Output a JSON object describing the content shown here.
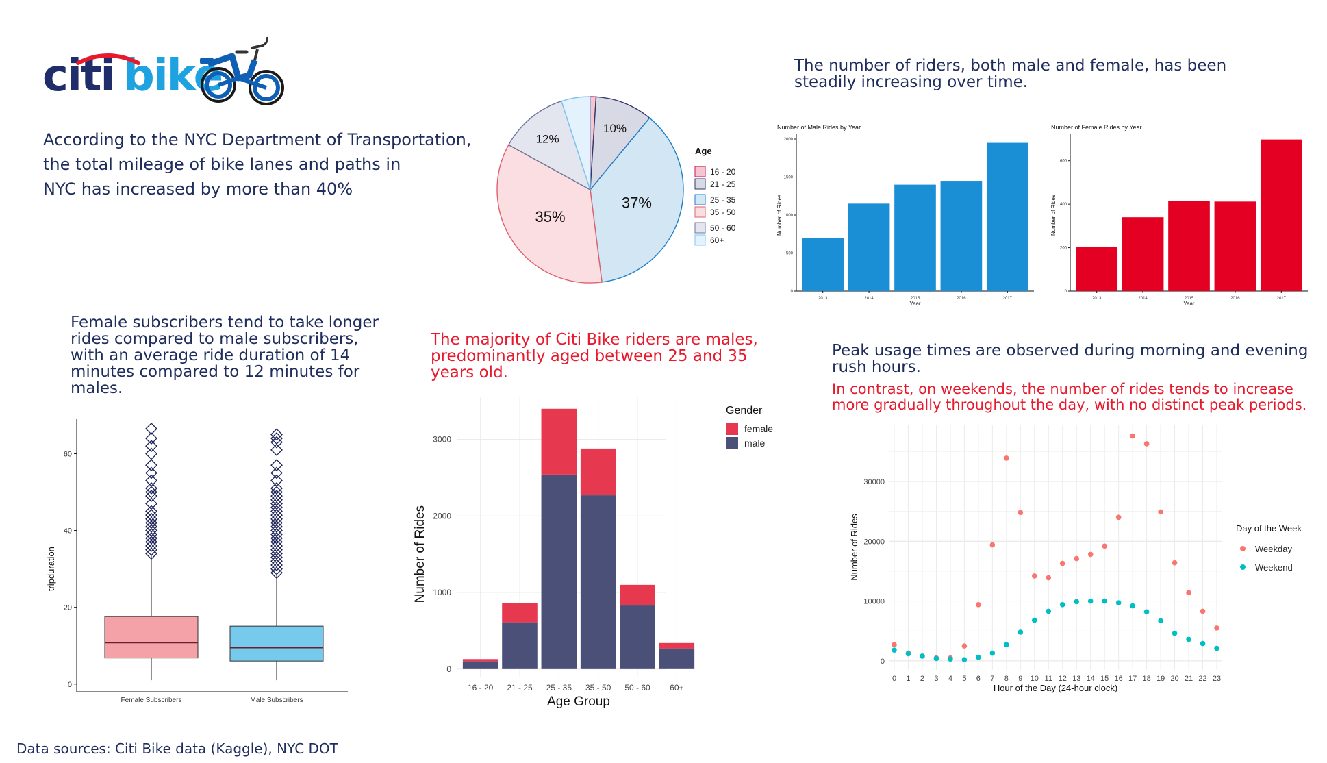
{
  "logo": {
    "text_a": "citi",
    "text_b": "bike",
    "icon": "bicycle-icon"
  },
  "intro": {
    "lines": [
      "According to the NYC Department of Transportation,",
      "the total mileage of bike lanes and paths in",
      "NYC has increased by more than 40%"
    ]
  },
  "trend_caption": {
    "lines": [
      "The number of riders, both male and female, has been",
      "steadily increasing over time."
    ]
  },
  "duration_caption": {
    "lines": [
      "Female subscribers tend to take longer",
      "rides compared to male subscribers,",
      "with an average ride duration of 14",
      "minutes compared to 12 minutes for",
      "males."
    ]
  },
  "agegender_caption": {
    "lines": [
      "The majority of Citi Bike riders are males,",
      "predominantly aged between 25 and 35",
      "years old."
    ]
  },
  "peak_caption": {
    "lines": [
      "Peak usage times are observed during morning and evening",
      "rush hours."
    ]
  },
  "weekend_caption": {
    "lines": [
      "In contrast, on weekends, the number of rides tends to increase",
      "more gradually throughout the day, with no distinct peak periods."
    ]
  },
  "footer": {
    "sources": "Data sources: Citi Bike data (Kaggle), NYC DOT"
  },
  "colors": {
    "navy": "#1f2d5c",
    "red": "#e8192c",
    "blue_bar": "#1a8fd6",
    "red_bar": "#e30022",
    "female": "#e6394f",
    "male": "#4b5078",
    "weekday": "#f8766d",
    "weekend": "#00bfc4",
    "box_female": "#f4a1a8",
    "box_male": "#76cbed"
  },
  "chart_data": [
    {
      "id": "age_pie",
      "type": "pie",
      "legend_title": "Age",
      "legend_position": "right",
      "slices": [
        {
          "label": "16 - 20",
          "value": 1,
          "text": "",
          "fill": "#f5c6d2",
          "stroke": "#c2185b"
        },
        {
          "label": "21 - 25",
          "value": 10,
          "text": "10%",
          "fill": "#d7d9e4",
          "stroke": "#34386a"
        },
        {
          "label": "25 - 35",
          "value": 37,
          "text": "37%",
          "fill": "#d2e6f4",
          "stroke": "#1f7fc4"
        },
        {
          "label": "35 - 50",
          "value": 35,
          "text": "35%",
          "fill": "#fbdee2",
          "stroke": "#e0606e"
        },
        {
          "label": "50 - 60",
          "value": 12,
          "text": "12%",
          "fill": "#e3e6ef",
          "stroke": "#6e7498"
        },
        {
          "label": "60+",
          "value": 5,
          "text": "",
          "fill": "#e3f2fc",
          "stroke": "#7cc5ef"
        }
      ]
    },
    {
      "id": "male_rides",
      "type": "bar",
      "title": "Number of Male Rides by Year",
      "xlabel": "Year",
      "ylabel": "Number of Rides",
      "categories": [
        "2013",
        "2014",
        "2015",
        "2016",
        "2017"
      ],
      "values": [
        700,
        1150,
        1400,
        1450,
        1950
      ],
      "yticks": [
        0,
        500,
        1000,
        1500,
        2000
      ],
      "ylim": [
        0,
        2000
      ]
    },
    {
      "id": "female_rides",
      "type": "bar",
      "title": "Number of Female Rides by Year",
      "xlabel": "Year",
      "ylabel": "Number of Rides",
      "categories": [
        "2013",
        "2014",
        "2015",
        "2016",
        "2017"
      ],
      "values": [
        205,
        340,
        415,
        412,
        698
      ],
      "yticks": [
        0,
        200,
        400,
        600
      ],
      "ylim": [
        0,
        700
      ]
    },
    {
      "id": "trip_duration",
      "type": "box",
      "ylabel": "tripduration",
      "categories": [
        "Female Subscribers",
        "Male Subscribers"
      ],
      "yticks": [
        0,
        20,
        40,
        60
      ],
      "ylim": [
        -2,
        69
      ],
      "boxes": [
        {
          "q1": 6.8,
          "median": 10.8,
          "q3": 17.6,
          "whisker_low": 1,
          "whisker_high": 33.5,
          "outliers": [
            34,
            35,
            36,
            37,
            38,
            39,
            40,
            41,
            42,
            43,
            44,
            45,
            47,
            49,
            50,
            51,
            53,
            55,
            57,
            60,
            62,
            64,
            66.5
          ]
        },
        {
          "q1": 6,
          "median": 9.5,
          "q3": 15.1,
          "whisker_low": 1,
          "whisker_high": 28.5,
          "outliers": [
            29,
            30,
            31,
            32,
            33,
            34,
            35,
            36,
            37,
            38,
            39,
            40,
            41,
            42,
            43,
            44,
            45,
            46,
            47,
            48,
            49,
            50,
            51,
            53,
            55,
            57,
            61,
            63,
            64,
            65
          ]
        }
      ]
    },
    {
      "id": "age_gender",
      "type": "bar",
      "stacked": true,
      "xlabel": "Age Group",
      "ylabel": "Number of Rides",
      "legend_title": "Gender",
      "categories": [
        "16 - 20",
        "21 - 25",
        "25 - 35",
        "35 - 50",
        "50 - 60",
        "60+"
      ],
      "series": [
        {
          "name": "male",
          "values": [
            100,
            610,
            2540,
            2270,
            830,
            270
          ]
        },
        {
          "name": "female",
          "values": [
            30,
            250,
            860,
            610,
            270,
            70
          ]
        }
      ],
      "yticks": [
        0,
        1000,
        2000,
        3000
      ],
      "ylim": [
        -100,
        3550
      ]
    },
    {
      "id": "hourly",
      "type": "scatter",
      "xlabel": "Hour of the Day (24-hour clock)",
      "ylabel": "Number of Rides",
      "legend_title": "Day of the Week",
      "x": [
        0,
        1,
        2,
        3,
        4,
        5,
        6,
        7,
        8,
        9,
        10,
        11,
        12,
        13,
        14,
        15,
        16,
        17,
        18,
        19,
        20,
        21,
        22,
        23
      ],
      "series": [
        {
          "name": "Weekday",
          "values": [
            2700,
            1300,
            800,
            500,
            500,
            2500,
            9400,
            19400,
            33900,
            24800,
            14200,
            13900,
            16300,
            17100,
            17800,
            19200,
            24000,
            37600,
            36300,
            24900,
            16400,
            11400,
            8300,
            5500
          ]
        },
        {
          "name": "Weekend",
          "values": [
            1800,
            1200,
            800,
            400,
            300,
            200,
            600,
            1300,
            2700,
            4800,
            6800,
            8300,
            9400,
            9900,
            10000,
            10000,
            9700,
            9200,
            8200,
            6700,
            4600,
            3600,
            2900,
            2100
          ]
        }
      ],
      "yticks": [
        0,
        10000,
        20000,
        30000
      ],
      "ylim": [
        -1500,
        39500
      ]
    }
  ]
}
